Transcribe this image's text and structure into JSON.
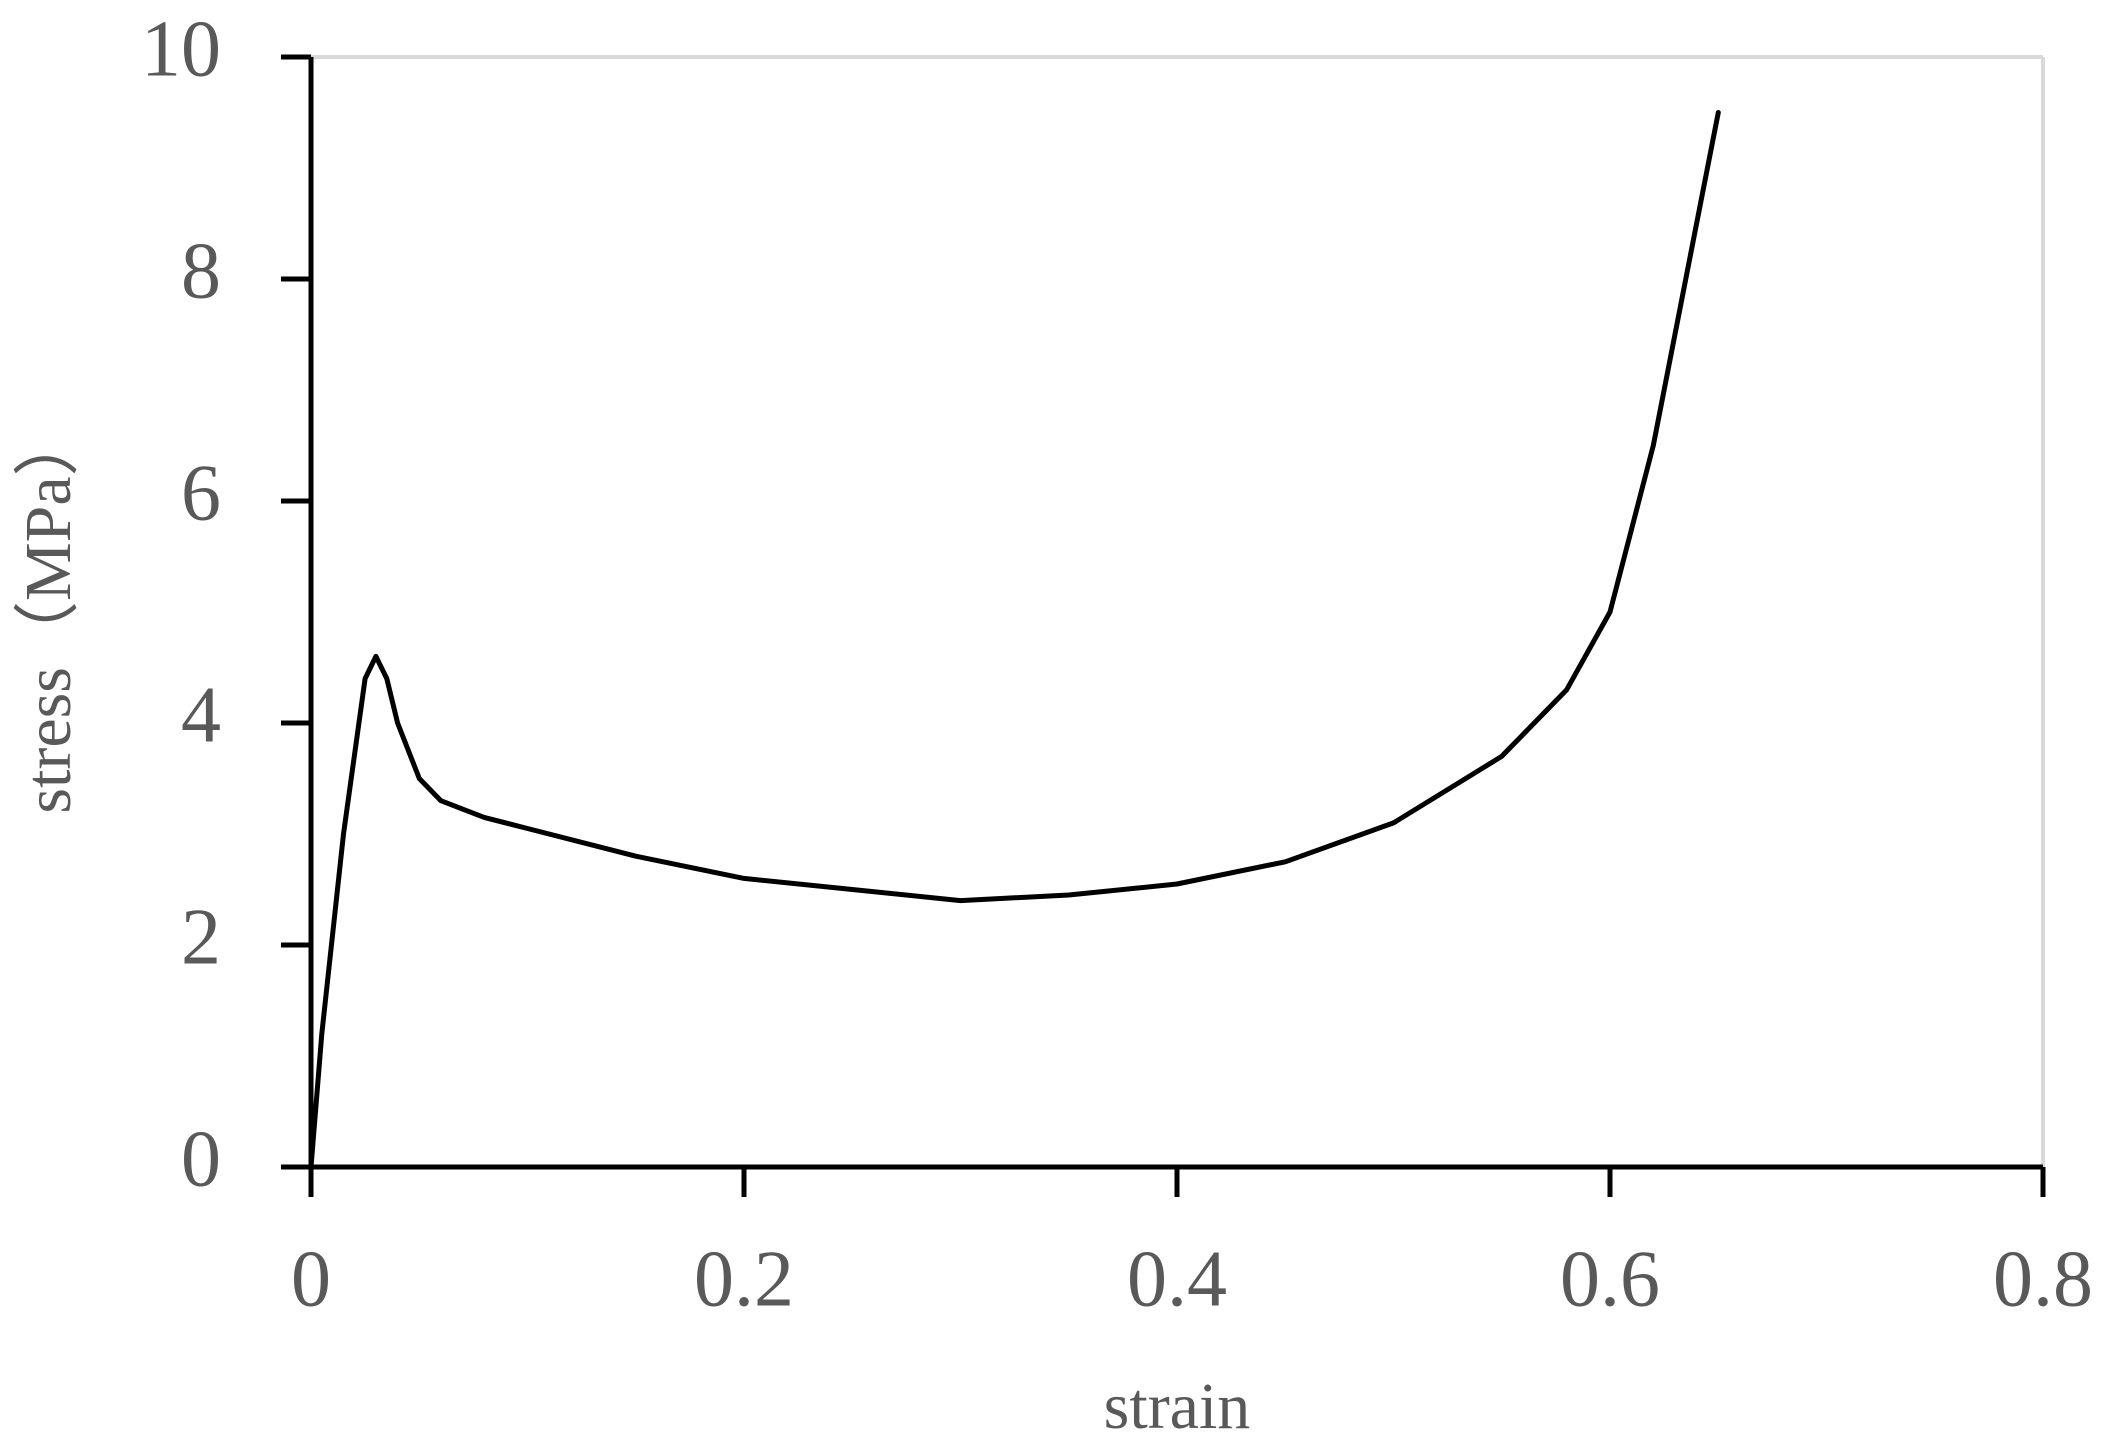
{
  "chart_data": {
    "type": "line",
    "x_label": "strain",
    "y_label": "stress（MPa）",
    "series": [
      {
        "color": "#000000",
        "x": [
          0,
          0.005,
          0.015,
          0.025,
          0.03,
          0.035,
          0.04,
          0.05,
          0.06,
          0.08,
          0.1,
          0.15,
          0.2,
          0.25,
          0.3,
          0.35,
          0.4,
          0.45,
          0.5,
          0.55,
          0.58,
          0.6,
          0.62,
          0.64,
          0.65
        ],
        "values": [
          0,
          1.2,
          3.0,
          4.4,
          4.6,
          4.4,
          4.0,
          3.5,
          3.3,
          3.15,
          3.05,
          2.8,
          2.6,
          2.5,
          2.4,
          2.45,
          2.55,
          2.75,
          3.1,
          3.7,
          4.3,
          5.0,
          6.5,
          8.5,
          9.5
        ]
      }
    ],
    "xlim": [
      0,
      0.8
    ],
    "xticks": [
      0,
      0.2,
      0.4,
      0.6,
      0.8
    ],
    "ylim": [
      0,
      10
    ],
    "yticks": [
      0,
      2,
      4,
      6,
      8,
      10
    ],
    "grid": false
  }
}
